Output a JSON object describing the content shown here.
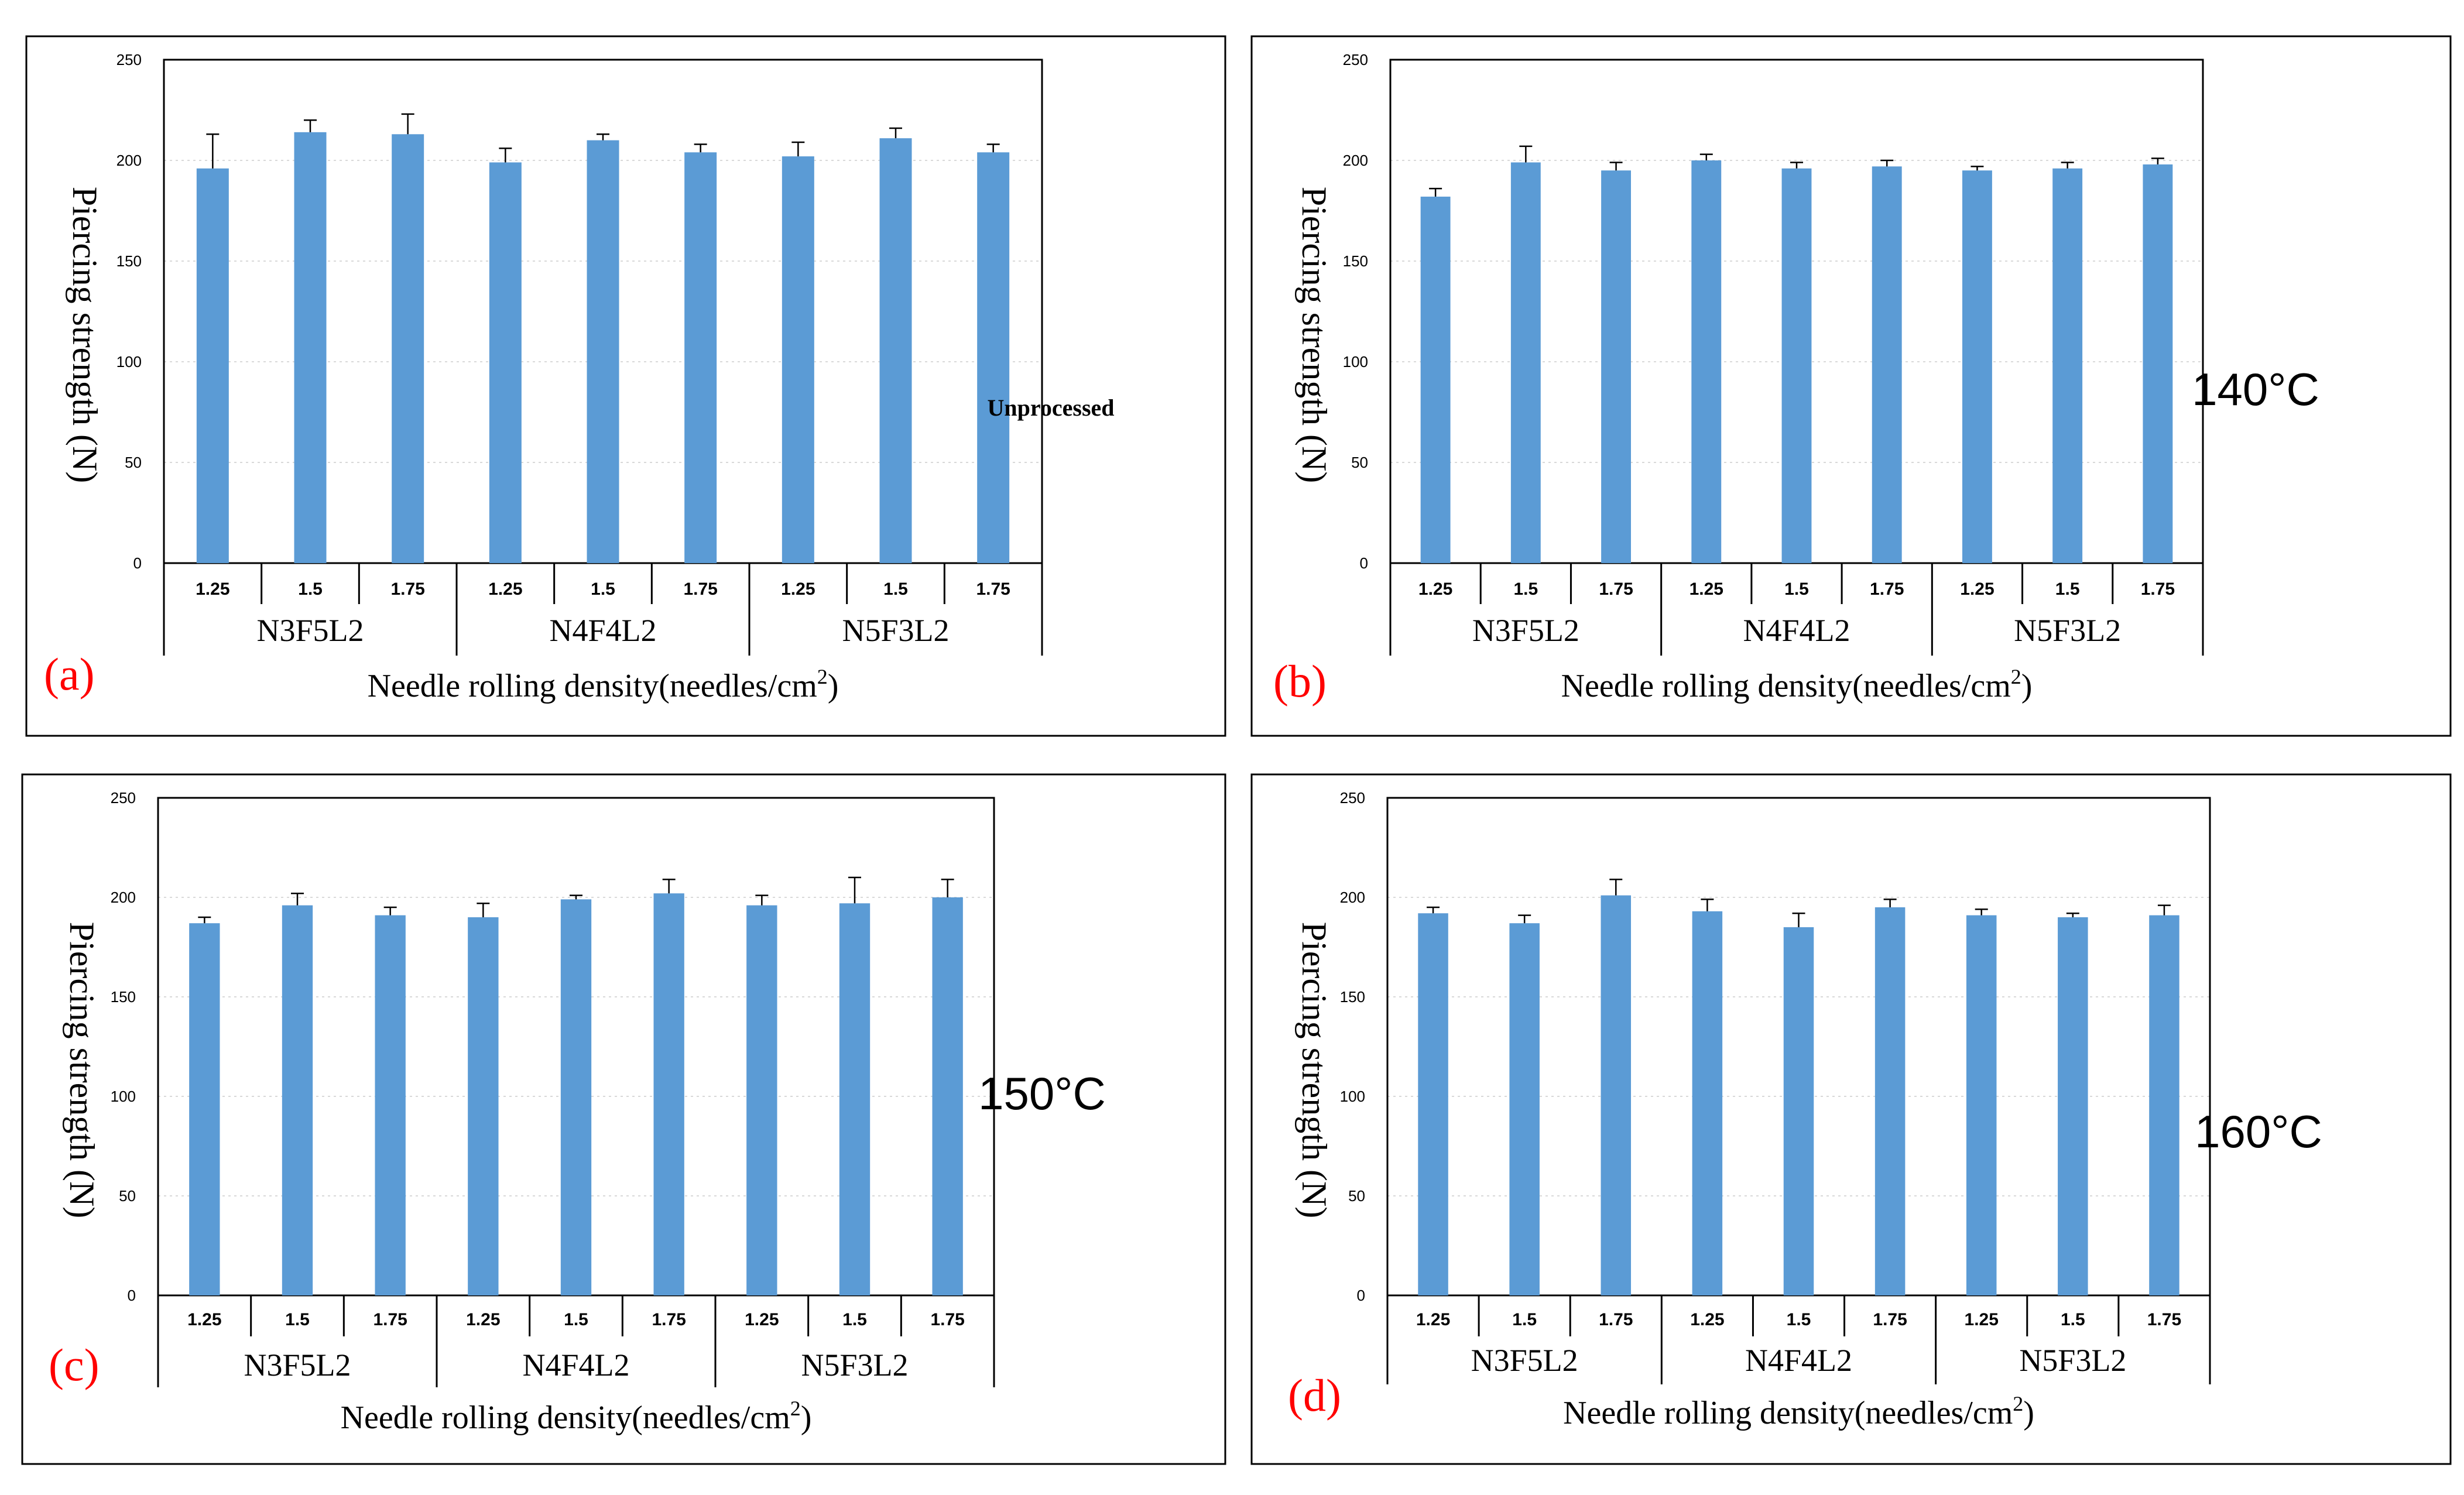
{
  "figure": {
    "xlabel_prefix": "Needle rolling density(needles/cm",
    "xlabel_sup": "2",
    "xlabel_suffix": ")",
    "ylabel": "Piercing strength (N)",
    "bar_color": "#5b9bd5",
    "letter_color": "#ff0000"
  },
  "chart_data": [
    {
      "type": "bar",
      "panel": "(a)",
      "condition": "Unprocessed",
      "ylim": [
        0,
        250
      ],
      "yticks": [
        0,
        50,
        100,
        150,
        200,
        250
      ],
      "xlabel": "Needle rolling density(needles/cm2)",
      "ylabel": "Piercing strength (N)",
      "groups": [
        "N3F5L2",
        "N4F4L2",
        "N5F3L2"
      ],
      "categories": [
        "1.25",
        "1.5",
        "1.75",
        "1.25",
        "1.5",
        "1.75",
        "1.25",
        "1.5",
        "1.75"
      ],
      "values": [
        196,
        214,
        213,
        199,
        210,
        204,
        202,
        211,
        204
      ],
      "errors": [
        17,
        6,
        10,
        7,
        3,
        4,
        7,
        5,
        4
      ]
    },
    {
      "type": "bar",
      "panel": "(b)",
      "condition": "140°C",
      "ylim": [
        0,
        250
      ],
      "yticks": [
        0,
        50,
        100,
        150,
        200,
        250
      ],
      "xlabel": "Needle rolling density(needles/cm2)",
      "ylabel": "Piercing strength (N)",
      "groups": [
        "N3F5L2",
        "N4F4L2",
        "N5F3L2"
      ],
      "categories": [
        "1.25",
        "1.5",
        "1.75",
        "1.25",
        "1.5",
        "1.75",
        "1.25",
        "1.5",
        "1.75"
      ],
      "values": [
        182,
        199,
        195,
        200,
        196,
        197,
        195,
        196,
        198
      ],
      "errors": [
        4,
        8,
        4,
        3,
        3,
        3,
        2,
        3,
        3
      ]
    },
    {
      "type": "bar",
      "panel": "(c)",
      "condition": "150°C",
      "ylim": [
        0,
        250
      ],
      "yticks": [
        0,
        50,
        100,
        150,
        200,
        250
      ],
      "xlabel": "Needle rolling density(needles/cm2)",
      "ylabel": "Piercing strength (N)",
      "groups": [
        "N3F5L2",
        "N4F4L2",
        "N5F3L2"
      ],
      "categories": [
        "1.25",
        "1.5",
        "1.75",
        "1.25",
        "1.5",
        "1.75",
        "1.25",
        "1.5",
        "1.75"
      ],
      "values": [
        187,
        196,
        191,
        190,
        199,
        202,
        196,
        197,
        200
      ],
      "errors": [
        3,
        6,
        4,
        7,
        2,
        7,
        5,
        13,
        9
      ]
    },
    {
      "type": "bar",
      "panel": "(d)",
      "condition": "160°C",
      "ylim": [
        0,
        250
      ],
      "yticks": [
        0,
        50,
        100,
        150,
        200,
        250
      ],
      "xlabel": "Needle rolling density(needles/cm2)",
      "ylabel": "Piercing strength (N)",
      "groups": [
        "N3F5L2",
        "N4F4L2",
        "N5F3L2"
      ],
      "categories": [
        "1.25",
        "1.5",
        "1.75",
        "1.25",
        "1.5",
        "1.75",
        "1.25",
        "1.5",
        "1.75"
      ],
      "values": [
        192,
        187,
        201,
        193,
        185,
        195,
        191,
        190,
        191
      ],
      "errors": [
        3,
        4,
        8,
        6,
        7,
        4,
        3,
        2,
        5
      ]
    }
  ]
}
